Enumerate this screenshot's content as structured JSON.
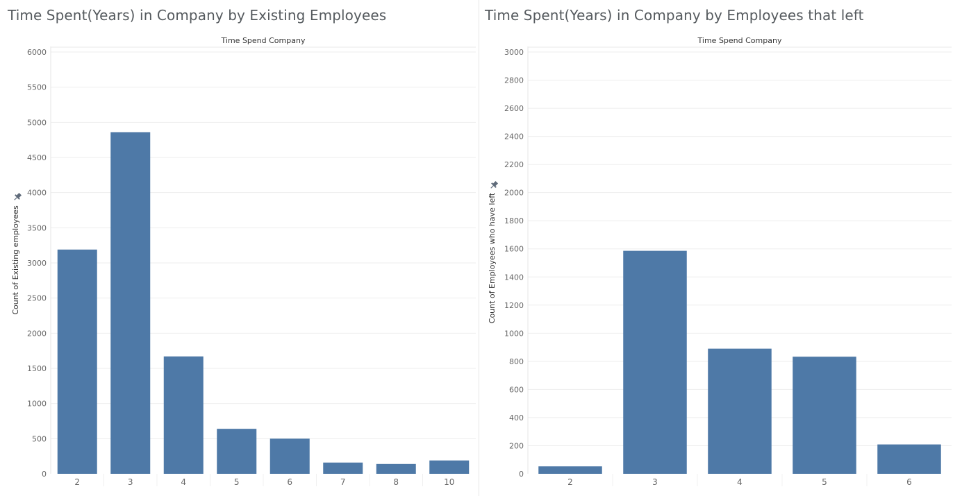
{
  "chart_data": [
    {
      "type": "bar",
      "title": "Time Spent(Years) in Company by Existing Employees",
      "header": "Time Spend Company",
      "ylabel": "Count of Existing employees",
      "categories": [
        "2",
        "3",
        "4",
        "5",
        "6",
        "7",
        "8",
        "10"
      ],
      "values": [
        3190,
        4860,
        1670,
        640,
        500,
        160,
        140,
        190
      ],
      "ylim": [
        0,
        6000
      ],
      "yticks": [
        "0",
        "500",
        "1000",
        "1500",
        "2000",
        "2500",
        "3000",
        "3500",
        "4000",
        "4500",
        "5000",
        "5500",
        "6000"
      ],
      "bar_color": "#4e79a7",
      "grid": true
    },
    {
      "type": "bar",
      "title": "Time Spent(Years) in Company by Employees that left",
      "header": "Time Spend Company",
      "ylabel": "Count of Employees who have left",
      "categories": [
        "2",
        "3",
        "4",
        "5",
        "6"
      ],
      "values": [
        53,
        1586,
        890,
        833,
        209
      ],
      "ylim": [
        0,
        3000
      ],
      "yticks": [
        "0",
        "200",
        "400",
        "600",
        "800",
        "1000",
        "1200",
        "1400",
        "1600",
        "1800",
        "2000",
        "2200",
        "2400",
        "2600",
        "2800",
        "3000"
      ],
      "bar_color": "#4e79a7",
      "grid": true
    }
  ]
}
